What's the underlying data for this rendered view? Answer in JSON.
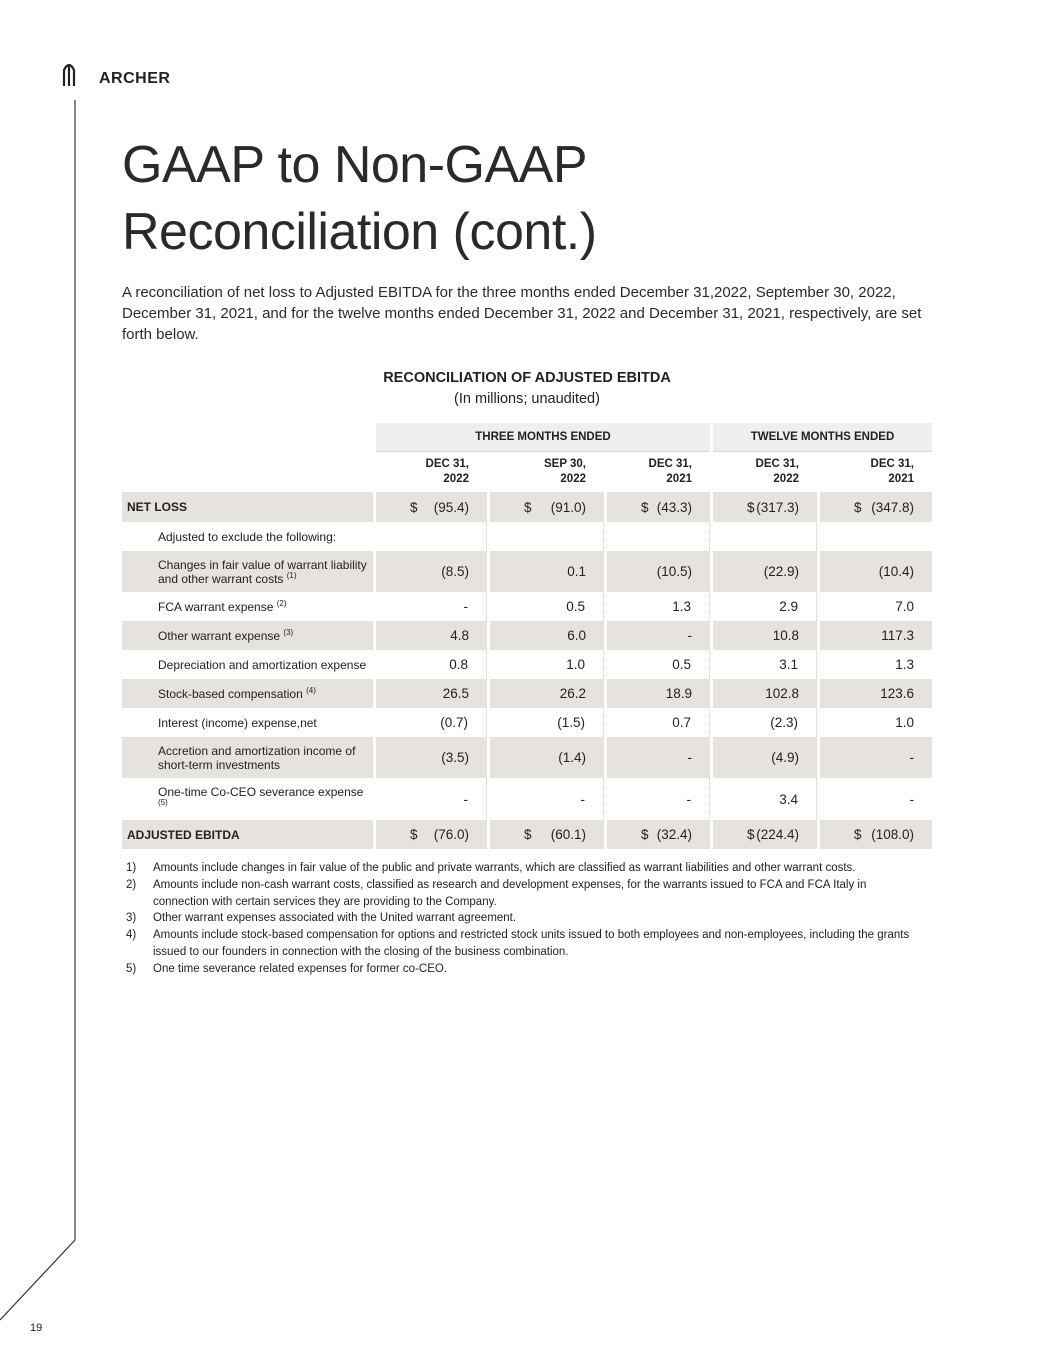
{
  "header": {
    "brand": "ARCHER"
  },
  "title_lines": [
    "GAAP to Non-GAAP",
    "Reconciliation (cont.)"
  ],
  "intro": "A reconciliation of net loss to Adjusted EBITDA for the three months ended December 31,2022, September 30, 2022, December 31, 2021, and for the twelve months ended  December 31, 2022 and December 31, 2021, respectively, are set forth below.",
  "table": {
    "title": "RECONCILIATION OF ADJUSTED EBITDA",
    "subtitle": "(In millions; unaudited)",
    "groups": [
      "THREE MONTHS ENDED",
      "TWELVE MONTHS ENDED"
    ],
    "columns": [
      [
        "DEC 31,",
        "2022"
      ],
      [
        "SEP 30,",
        "2022"
      ],
      [
        "DEC 31,",
        "2021"
      ],
      [
        "DEC 31,",
        "2022"
      ],
      [
        "DEC 31,",
        "2021"
      ]
    ],
    "rows": [
      {
        "label": "NET LOSS",
        "currency": "$",
        "values": [
          "(95.4)",
          "(91.0)",
          "(43.3)",
          "(317.3)",
          "(347.8)"
        ]
      },
      {
        "label": "Adjusted to exclude the following:"
      },
      {
        "label": "Changes in fair value of warrant liability and other warrant costs",
        "note": "(1)",
        "values": [
          "(8.5)",
          "0.1",
          "(10.5)",
          "(22.9)",
          "(10.4)"
        ]
      },
      {
        "label": "FCA warrant expense",
        "note": "(2)",
        "values": [
          "-",
          "0.5",
          "1.3",
          "2.9",
          "7.0"
        ]
      },
      {
        "label": "Other warrant expense",
        "note": "(3)",
        "values": [
          "4.8",
          "6.0",
          "-",
          "10.8",
          "117.3"
        ]
      },
      {
        "label": "Depreciation and amortization expense",
        "values": [
          "0.8",
          "1.0",
          "0.5",
          "3.1",
          "1.3"
        ]
      },
      {
        "label": "Stock-based compensation",
        "note": "(4)",
        "values": [
          "26.5",
          "26.2",
          "18.9",
          "102.8",
          "123.6"
        ]
      },
      {
        "label": "Interest (income) expense,net",
        "values": [
          "(0.7)",
          "(1.5)",
          "0.7",
          "(2.3)",
          "1.0"
        ]
      },
      {
        "label": "Accretion and amortization income of short-term investments",
        "values": [
          "(3.5)",
          "(1.4)",
          "-",
          "(4.9)",
          "-"
        ]
      },
      {
        "label": "One-time Co-CEO severance expense",
        "note": "(5)",
        "values": [
          "-",
          "-",
          "-",
          "3.4",
          "-"
        ]
      },
      {
        "label": "ADJUSTED EBITDA",
        "currency": "$",
        "values": [
          "(76.0)",
          "(60.1)",
          "(32.4)",
          "(224.4)",
          "(108.0)"
        ]
      }
    ]
  },
  "footnotes": [
    {
      "number": "1)",
      "text": "Amounts include changes in fair value of the public and private warrants, which are classified as warrant liabilities and other warrant costs."
    },
    {
      "number": "2)",
      "text": "Amounts include non-cash warrant costs, classified as research and development expenses, for the warrants issued to FCA and FCA Italy in connection with certain services they are providing to the Company."
    },
    {
      "number": "3)",
      "text": "Other warrant expenses associated with the United warrant agreement."
    },
    {
      "number": "4)",
      "text": "Amounts include stock-based compensation for options and restricted stock units issued to both employees and non-employees, including the grants issued to our founders in connection with the closing of the business combination."
    },
    {
      "number": "5)",
      "text": "One time severance related expenses for former co-CEO."
    }
  ],
  "page_number": "19"
}
